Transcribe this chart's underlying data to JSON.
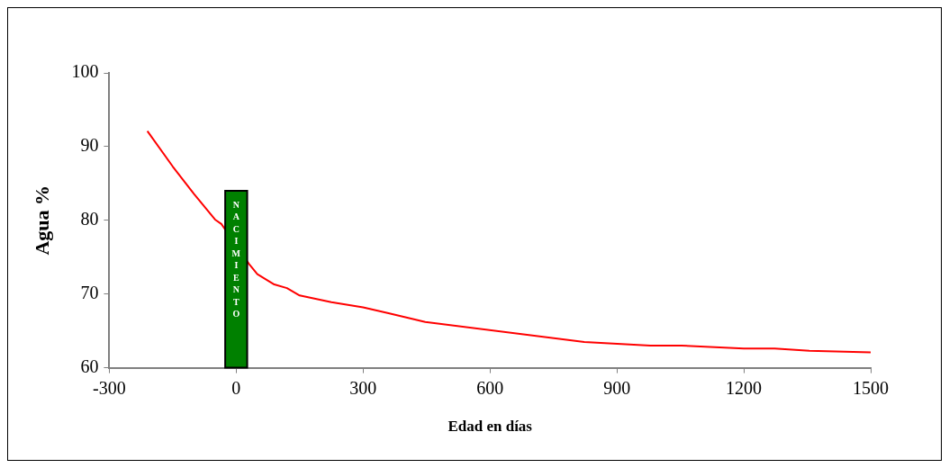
{
  "chart_data": {
    "type": "line",
    "xlabel": "Edad en días",
    "ylabel": "Agua %",
    "x": [
      -210,
      -150,
      -100,
      -50,
      -35,
      30,
      50,
      90,
      120,
      150,
      225,
      300,
      360,
      447,
      823,
      979,
      1053,
      1200,
      1273,
      1355,
      1500
    ],
    "series": [
      {
        "color": "#ff0000",
        "values": [
          92.1,
          87.3,
          83.6,
          80.1,
          79.5,
          74.1,
          72.7,
          71.3,
          70.8,
          69.8,
          68.9,
          68.2,
          67.4,
          66.2,
          63.5,
          63.0,
          63.0,
          62.6,
          62.6,
          62.3,
          62.1
        ]
      }
    ],
    "xlim": [
      -300,
      1500
    ],
    "xticks": [
      -300,
      0,
      300,
      600,
      900,
      1200,
      1500
    ],
    "ylim": [
      60,
      100
    ],
    "yticks": [
      60,
      70,
      80,
      90,
      100
    ],
    "bands": [
      {
        "axis": "x",
        "from": -26,
        "to": 26,
        "label": "NACIMIENTO",
        "color": "#008000"
      }
    ],
    "grid": false,
    "legend": false,
    "marker": "none",
    "line_style": "solid"
  }
}
